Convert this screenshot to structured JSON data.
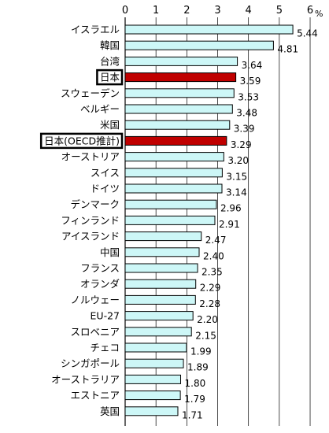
{
  "chart_data": {
    "type": "bar",
    "orientation": "horizontal",
    "title": "",
    "xlabel": "",
    "ylabel": "",
    "unit": "%",
    "xlim": [
      0,
      6
    ],
    "xticks": [
      0,
      1,
      2,
      3,
      4,
      5,
      6
    ],
    "grid": true,
    "categories": [
      "イスラエル",
      "韓国",
      "台湾",
      "日本",
      "スウェーデン",
      "ベルギー",
      "米国",
      "日本(OECD推計)",
      "オーストリア",
      "スイス",
      "ドイツ",
      "デンマーク",
      "フィンランド",
      "アイスランド",
      "中国",
      "フランス",
      "オランダ",
      "ノルウェー",
      "EU-27",
      "スロベニア",
      "チェコ",
      "シンガポール",
      "オーストラリア",
      "エストニア",
      "英国"
    ],
    "values": [
      5.44,
      4.81,
      3.64,
      3.59,
      3.53,
      3.48,
      3.39,
      3.29,
      3.2,
      3.15,
      3.14,
      2.96,
      2.91,
      2.47,
      2.4,
      2.35,
      2.29,
      2.28,
      2.2,
      2.15,
      1.99,
      1.89,
      1.8,
      1.79,
      1.71
    ],
    "value_labels": [
      "5.44",
      "4.81",
      "3.64",
      "3.59",
      "3.53",
      "3.48",
      "3.39",
      "3.29",
      "3.20",
      "3.15",
      "3.14",
      "2.96",
      "2.91",
      "2.47",
      "2.40",
      "2.35",
      "2.29",
      "2.28",
      "2.20",
      "2.15",
      "1.99",
      "1.89",
      "1.80",
      "1.79",
      "1.71"
    ],
    "highlighted": [
      "日本",
      "日本(OECD推計)"
    ],
    "colors": {
      "bar": "#cdf7f7",
      "bar_border": "#000000",
      "highlight": "#c00000",
      "grid": "#000000"
    }
  }
}
